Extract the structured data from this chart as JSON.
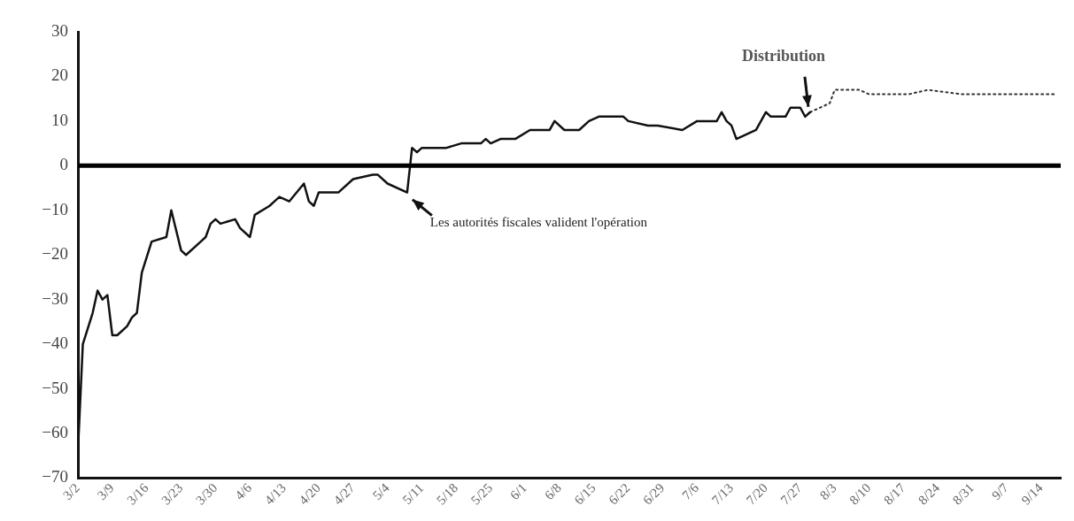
{
  "chart_data": {
    "type": "line",
    "series": [
      {
        "color": "#111111",
        "line_style": "solid",
        "x": [
          "--03-02",
          "--03-03",
          "--03-05",
          "--03-06",
          "--03-07",
          "--03-08",
          "--03-09",
          "--03-10",
          "--03-12",
          "--03-13",
          "--03-14",
          "--03-15",
          "--03-17",
          "--03-20",
          "--03-21",
          "--03-23",
          "--03-24",
          "--03-27",
          "--03-28",
          "--03-29",
          "--03-30",
          "--03-31",
          "--04-03",
          "--04-04",
          "--04-06",
          "--04-07",
          "--04-10",
          "--04-11",
          "--04-12",
          "--04-14",
          "--04-17",
          "--04-18",
          "--04-19",
          "--04-20",
          "--04-24",
          "--04-27",
          "--05-01",
          "--05-02",
          "--05-04",
          "--05-08",
          "--05-09",
          "--05-10",
          "--05-11",
          "--05-16",
          "--05-19",
          "--05-23",
          "--05-24",
          "--05-25",
          "--05-27",
          "--05-30",
          "--06-02",
          "--06-06",
          "--06-07",
          "--06-09",
          "--06-12",
          "--06-14",
          "--06-16",
          "--06-20",
          "--06-21",
          "--06-22",
          "--06-26",
          "--06-28",
          "--07-03",
          "--07-06",
          "--07-10",
          "--07-11",
          "--07-12",
          "--07-13",
          "--07-14",
          "--07-18",
          "--07-20",
          "--07-21",
          "--07-24",
          "--07-25",
          "--07-27",
          "--07-28",
          "--07-29"
        ],
        "values": [
          -64,
          -40,
          -33,
          -28,
          -30,
          -29,
          -38,
          -38,
          -36,
          -34,
          -33,
          -24,
          -17,
          -16,
          -10,
          -19,
          -20,
          -17,
          -16,
          -13,
          -12,
          -13,
          -12,
          -14,
          -16,
          -11,
          -9,
          -8,
          -7,
          -8,
          -4,
          -8,
          -9,
          -6,
          -6,
          -3,
          -2,
          -2,
          -4,
          -6,
          4,
          3,
          4,
          4,
          5,
          5,
          6,
          5,
          6,
          6,
          8,
          8,
          10,
          8,
          8,
          10,
          11,
          11,
          11,
          10,
          9,
          9,
          8,
          10,
          10,
          12,
          10,
          9,
          6,
          8,
          12,
          11,
          11,
          13,
          13,
          11,
          12
        ]
      },
      {
        "color": "#333333",
        "line_style": "dotted",
        "x": [
          "--07-29",
          "--08-02",
          "--08-03",
          "--08-05",
          "--08-08",
          "--08-10",
          "--08-15",
          "--08-18",
          "--08-22",
          "--08-29",
          "--09-02",
          "--09-07",
          "--09-12",
          "--09-15",
          "--09-17"
        ],
        "values": [
          12,
          14,
          17,
          17,
          17,
          16,
          16,
          16,
          17,
          16,
          16,
          16,
          16,
          16,
          16
        ]
      }
    ],
    "xlim": [
      "--03-02",
      "--09-18"
    ],
    "xticks": [
      {
        "value": "--03-02",
        "label": "3/2"
      },
      {
        "value": "--03-09",
        "label": "3/9"
      },
      {
        "value": "--03-16",
        "label": "3/16"
      },
      {
        "value": "--03-23",
        "label": "3/23"
      },
      {
        "value": "--03-30",
        "label": "3/30"
      },
      {
        "value": "--04-06",
        "label": "4/6"
      },
      {
        "value": "--04-13",
        "label": "4/13"
      },
      {
        "value": "--04-20",
        "label": "4/20"
      },
      {
        "value": "--04-27",
        "label": "4/27"
      },
      {
        "value": "--05-04",
        "label": "5/4"
      },
      {
        "value": "--05-11",
        "label": "5/11"
      },
      {
        "value": "--05-18",
        "label": "5/18"
      },
      {
        "value": "--05-25",
        "label": "5/25"
      },
      {
        "value": "--06-01",
        "label": "6/1"
      },
      {
        "value": "--06-08",
        "label": "6/8"
      },
      {
        "value": "--06-15",
        "label": "6/15"
      },
      {
        "value": "--06-22",
        "label": "6/22"
      },
      {
        "value": "--06-29",
        "label": "6/29"
      },
      {
        "value": "--07-06",
        "label": "7/6"
      },
      {
        "value": "--07-13",
        "label": "7/13"
      },
      {
        "value": "--07-20",
        "label": "7/20"
      },
      {
        "value": "--07-27",
        "label": "7/27"
      },
      {
        "value": "--08-03",
        "label": "8/3"
      },
      {
        "value": "--08-10",
        "label": "8/10"
      },
      {
        "value": "--08-17",
        "label": "8/17"
      },
      {
        "value": "--08-24",
        "label": "8/24"
      },
      {
        "value": "--08-31",
        "label": "8/31"
      },
      {
        "value": "--09-07",
        "label": "9/7"
      },
      {
        "value": "--09-14",
        "label": "9/14"
      }
    ],
    "ylim": [
      -70,
      30
    ],
    "yticks": [
      -70,
      -60,
      -50,
      -40,
      -30,
      -20,
      -10,
      0,
      10,
      20,
      30
    ],
    "ref_lines": [
      {
        "axis": "y",
        "value": 0,
        "color": "#000000"
      }
    ],
    "annotations": [
      {
        "text": "Les autorités fiscales valident l'opération",
        "x": "--05-08",
        "y": -6
      },
      {
        "text": "Distribution",
        "x": "--07-29",
        "y": 12
      }
    ],
    "grid": false,
    "legend": false,
    "marker": "none"
  }
}
